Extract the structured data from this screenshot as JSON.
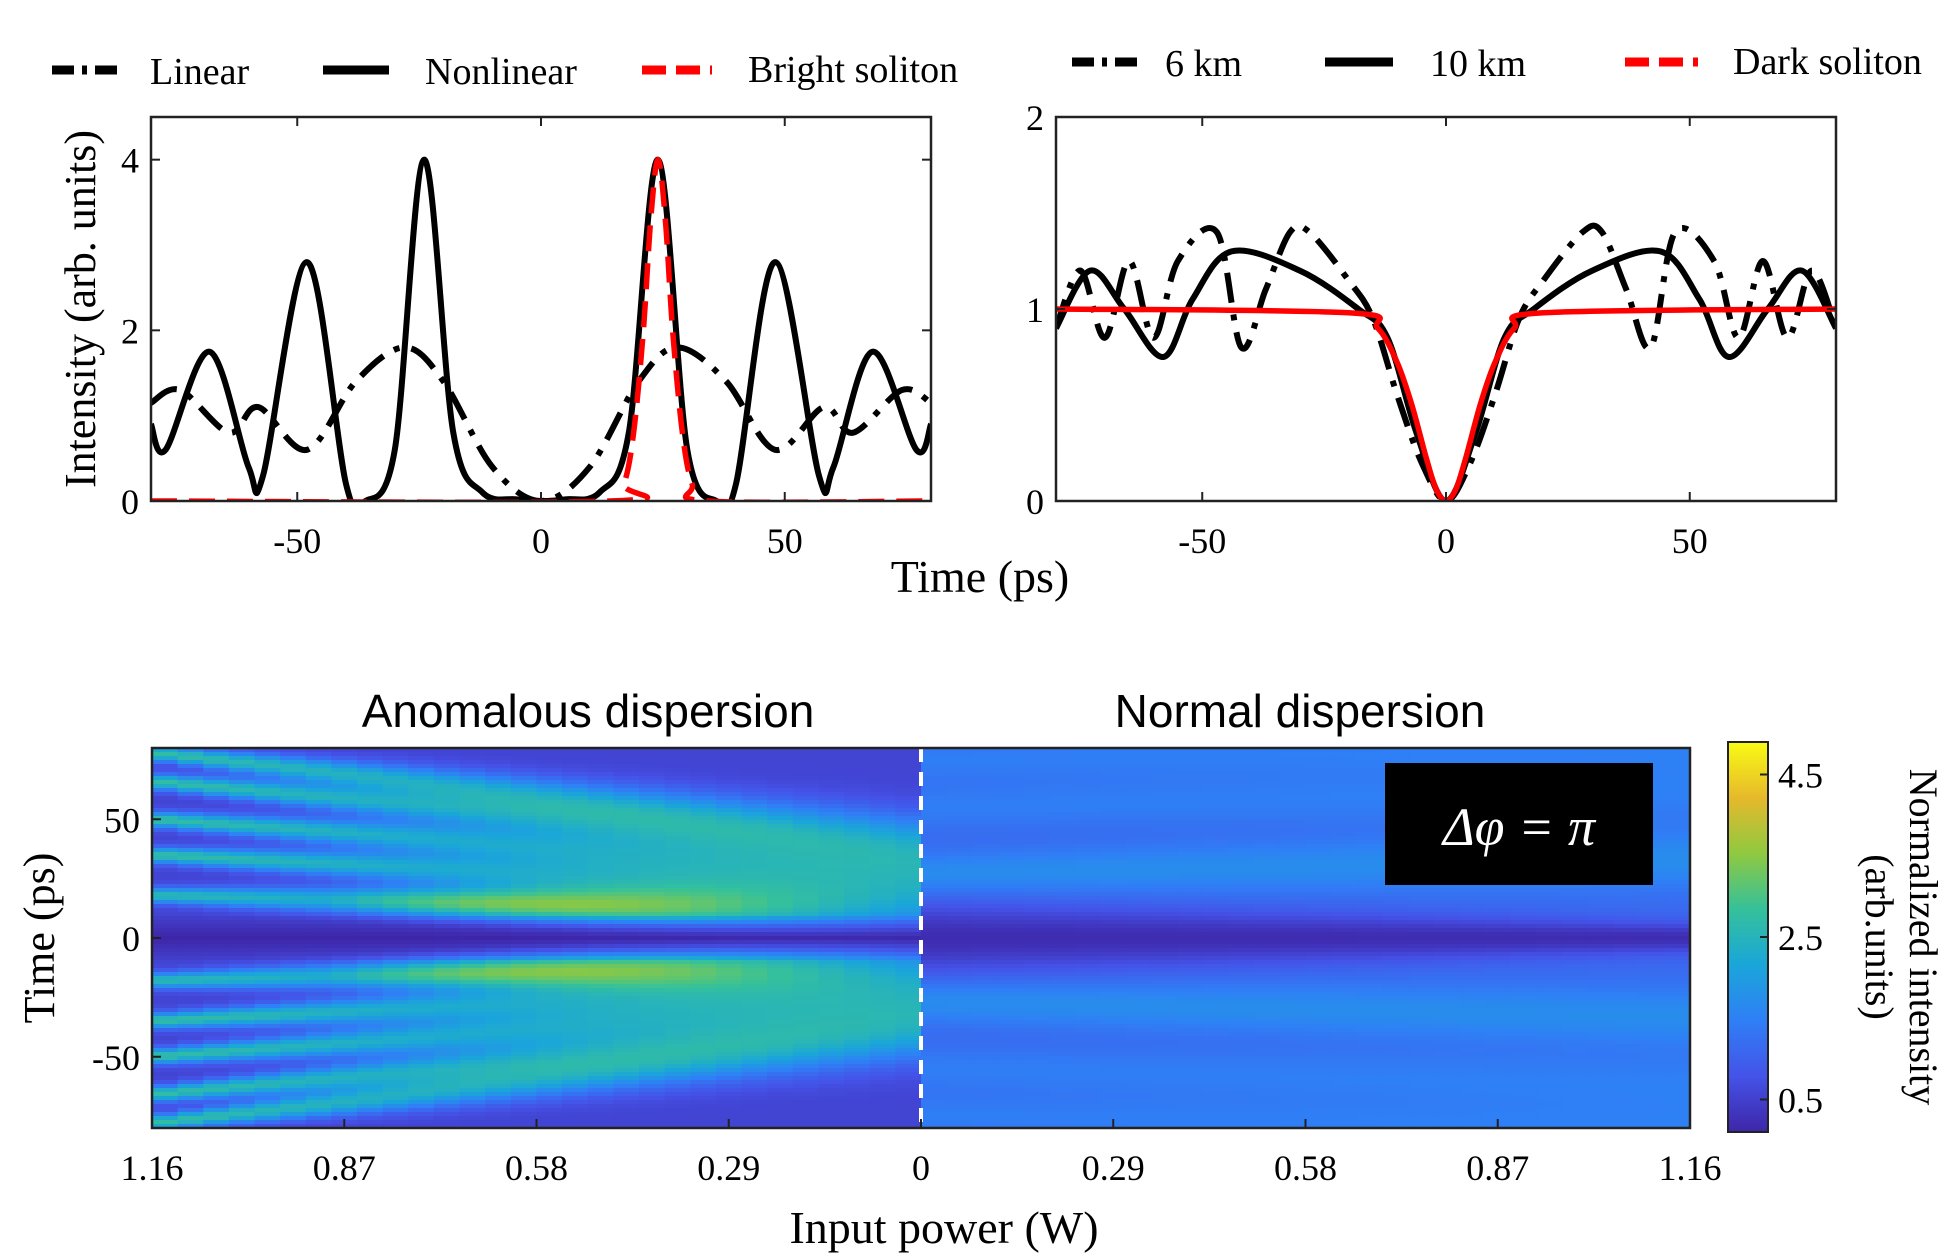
{
  "chart_data": [
    {
      "type": "line",
      "panel": "top-left",
      "xlabel": "",
      "ylabel": "Intensity (arb. units)",
      "xlim": [
        -80,
        80
      ],
      "ylim": [
        0,
        4.5
      ],
      "xticks": [
        -50,
        0,
        50
      ],
      "yticks": [
        0,
        2,
        4
      ],
      "legend_placement": "top",
      "series": [
        {
          "name": "Linear",
          "style": "dash-dot",
          "color": "#000000",
          "x": [
            -80,
            -74,
            -64,
            -58,
            -48,
            -38,
            -28,
            -20,
            -10,
            0,
            10,
            20,
            28,
            38,
            48,
            58,
            64,
            74,
            80
          ],
          "y": [
            1.15,
            1.3,
            0.8,
            1.1,
            0.6,
            1.4,
            1.8,
            1.4,
            0.4,
            0.0,
            0.4,
            1.4,
            1.8,
            1.4,
            0.6,
            1.1,
            0.8,
            1.3,
            1.15
          ]
        },
        {
          "name": "Nonlinear",
          "style": "solid",
          "color": "#000000",
          "x": [
            -80,
            -77,
            -68,
            -60,
            -57,
            -48,
            -40,
            -36,
            -30,
            -24,
            -18,
            -12,
            -5,
            0,
            5,
            12,
            18,
            24,
            30,
            36,
            40,
            48,
            57,
            60,
            68,
            77,
            80
          ],
          "y": [
            0.9,
            0.6,
            1.75,
            0.4,
            0.3,
            2.8,
            0.2,
            0.0,
            0.6,
            4.0,
            0.8,
            0.1,
            0.02,
            0.0,
            0.02,
            0.1,
            0.8,
            4.0,
            0.6,
            0.0,
            0.2,
            2.8,
            0.3,
            0.4,
            1.75,
            0.6,
            0.9
          ]
        },
        {
          "name": "Bright soliton",
          "style": "dashed",
          "color": "#ff0000",
          "x": [
            -80,
            14,
            17,
            19,
            21,
            22.5,
            24,
            25.5,
            27,
            29,
            31,
            34,
            80
          ],
          "y": [
            0,
            0.0,
            0.2,
            0.8,
            2.0,
            3.3,
            4.0,
            3.3,
            2.0,
            0.8,
            0.2,
            0.0,
            0
          ]
        }
      ]
    },
    {
      "type": "line",
      "panel": "top-right",
      "xlabel": "Time (ps)",
      "ylabel": "",
      "xlim": [
        -80,
        80
      ],
      "ylim": [
        0,
        2
      ],
      "xticks": [
        -50,
        0,
        50
      ],
      "yticks": [
        0,
        1,
        2
      ],
      "legend_placement": "top",
      "series": [
        {
          "name": "6 km",
          "style": "dash-dot",
          "color": "#000000",
          "x": [
            -80,
            -75,
            -70,
            -65,
            -60,
            -55,
            -47,
            -42,
            -37,
            -32,
            -28,
            -20,
            -15,
            -10,
            -5,
            0,
            5,
            10,
            15,
            20,
            28,
            32,
            37,
            42,
            47,
            55,
            60,
            65,
            70,
            75,
            80
          ],
          "y": [
            0.9,
            1.2,
            0.85,
            1.25,
            0.85,
            1.25,
            1.4,
            0.8,
            1.1,
            1.4,
            1.4,
            1.15,
            0.95,
            0.55,
            0.2,
            0.0,
            0.2,
            0.55,
            0.95,
            1.15,
            1.4,
            1.4,
            1.1,
            0.8,
            1.4,
            1.25,
            0.85,
            1.25,
            0.85,
            1.2,
            0.9
          ]
        },
        {
          "name": "10 km",
          "style": "solid",
          "color": "#000000",
          "x": [
            -80,
            -73,
            -66,
            -58,
            -52,
            -44,
            -30,
            -18,
            -12,
            -6,
            0,
            6,
            12,
            18,
            30,
            44,
            52,
            58,
            66,
            73,
            80
          ],
          "y": [
            0.9,
            1.2,
            1.0,
            0.75,
            1.05,
            1.3,
            1.2,
            1.0,
            0.85,
            0.35,
            0.0,
            0.35,
            0.85,
            1.0,
            1.2,
            1.3,
            1.05,
            0.75,
            1.0,
            1.2,
            0.9
          ]
        },
        {
          "name": "Dark soliton",
          "style": "solid",
          "color": "#ff0000",
          "x": [
            -80,
            -20,
            -14,
            -10,
            -7,
            -4,
            -2,
            0,
            2,
            4,
            7,
            10,
            14,
            20,
            80
          ],
          "y": [
            1.0,
            0.98,
            0.9,
            0.72,
            0.5,
            0.22,
            0.06,
            0.0,
            0.06,
            0.22,
            0.5,
            0.72,
            0.9,
            0.98,
            1.0
          ]
        }
      ]
    },
    {
      "type": "heatmap",
      "panel": "bottom",
      "xlabel": "Input power (W)",
      "ylabel": "Time (ps)",
      "xticks": [
        "1.16",
        "0.87",
        "0.58",
        "0.29",
        "0",
        "0.29",
        "0.58",
        "0.87",
        "1.16"
      ],
      "yticks": [
        50,
        0,
        -50
      ],
      "ylim": [
        -80,
        80
      ],
      "region_labels": [
        "Anomalous dispersion",
        "Normal dispersion"
      ],
      "annotation": "Δφ = π",
      "colorbar": {
        "label_line1": "Normalized intensity",
        "label_line2": "(arb.units)",
        "ticks": [
          "4.5",
          "2.5",
          "0.5"
        ],
        "range": [
          0.1,
          4.9
        ],
        "colors": [
          "#3e26a8",
          "#4453e8",
          "#2f7ff6",
          "#1aa6d9",
          "#35c19a",
          "#8fc940",
          "#e6b92b",
          "#f9fb14"
        ]
      },
      "anomalous_peak_time_ps": [
        18,
        35,
        50,
        66,
        78
      ],
      "normal_band_time_ps": [
        27,
        55,
        75
      ]
    }
  ]
}
